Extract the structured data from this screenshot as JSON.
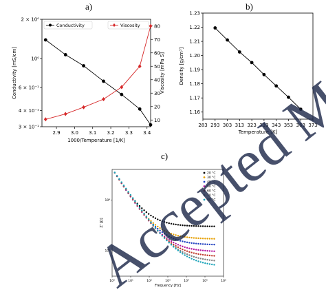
{
  "panel_labels": [
    "a)",
    "b)",
    "c)"
  ],
  "chart_data": [
    {
      "panel": "a)",
      "type": "line",
      "xlabel": "1000/Temperature [1/K]",
      "ylabel": "Conductivity [mS/cm]",
      "ylabel_right": "Viscosity [mPa S]",
      "xlim": [
        2.82,
        3.42
      ],
      "xticks": [
        "2.9",
        "3.0",
        "3.1",
        "3.2",
        "3.3",
        "3.4"
      ],
      "yscale": "log",
      "ylim": [
        0.3,
        2.0
      ],
      "yticks": [
        {
          "v": 2.0,
          "label": "2 × 10⁰"
        },
        {
          "v": 1.0,
          "label": "10⁰"
        },
        {
          "v": 0.6,
          "label": "6 × 10⁻¹"
        },
        {
          "v": 0.4,
          "label": "4 × 10⁻¹"
        },
        {
          "v": 0.3,
          "label": "3 × 10⁻¹"
        }
      ],
      "ylim_right": [
        5,
        85
      ],
      "yticks_right": [
        "10",
        "20",
        "30",
        "40",
        "50",
        "60",
        "70",
        "80"
      ],
      "legend_position": "top",
      "series": [
        {
          "name": "Conductivity",
          "axis": "left",
          "color": "#000000",
          "marker": "circle",
          "x": [
            2.84,
            2.95,
            3.05,
            3.16,
            3.26,
            3.36,
            3.46
          ],
          "y": [
            1.39,
            1.07,
            0.88,
            0.67,
            0.53,
            0.41,
            0.31
          ]
        },
        {
          "name": "Viscosity",
          "axis": "right",
          "color": "#d62728",
          "marker": "diamond",
          "x": [
            2.84,
            2.95,
            3.05,
            3.16,
            3.26,
            3.36,
            3.46
          ],
          "y": [
            10.5,
            14.5,
            19.5,
            25.5,
            34.5,
            50,
            80
          ]
        }
      ]
    },
    {
      "panel": "b)",
      "type": "line",
      "xlabel": "Temperature [K]",
      "ylabel": "Density [g/cm³]",
      "xlim": [
        283,
        373
      ],
      "xticks": [
        "283",
        "293",
        "303",
        "313",
        "323",
        "333",
        "343",
        "353",
        "363",
        "373"
      ],
      "ylim": [
        1.155,
        1.23
      ],
      "yticks": [
        "1.16",
        "1.17",
        "1.18",
        "1.19",
        "1.20",
        "1.21",
        "1.22",
        "1.23"
      ],
      "series": [
        {
          "color": "#000000",
          "marker": "circle",
          "x": [
            293,
            303,
            313,
            323,
            333,
            343,
            353,
            363
          ],
          "y": [
            1.2195,
            1.211,
            1.2025,
            1.195,
            1.1865,
            1.1785,
            1.1705,
            1.162
          ]
        }
      ]
    },
    {
      "panel": "c)",
      "type": "scatter",
      "xlabel": "Frequency [Hz]",
      "ylabel": "Z' [Ω]",
      "xscale": "log",
      "yscale": "log",
      "xlim_log10": [
        0,
        6
      ],
      "xticks": [
        "10⁰",
        "10¹",
        "10²",
        "10³",
        "10⁴",
        "10⁵",
        "10⁶"
      ],
      "ylim_log10": [
        2.5,
        4.6
      ],
      "yticks": [
        "10⁴",
        "10³"
      ],
      "legend_position": "top-right",
      "series": [
        {
          "name": "20 °C",
          "color": "#000000",
          "plateau": 3000
        },
        {
          "name": "30 °C",
          "color": "#e69f00",
          "plateau": 1700
        },
        {
          "name": "40 °C",
          "color": "#1f3fbf",
          "plateau": 1300
        },
        {
          "name": "50 °C",
          "color": "#b5179e",
          "plateau": 950
        },
        {
          "name": "60 °C",
          "color": "#c0392b",
          "plateau": 760
        },
        {
          "name": "70 °C",
          "color": "#7f7f7f",
          "plateau": 600
        },
        {
          "name": "80 °C",
          "color": "#17a2b8",
          "plateau": 480
        }
      ],
      "low_frequency_start": 40000
    }
  ],
  "watermark_text": "Accepted Manuscript"
}
